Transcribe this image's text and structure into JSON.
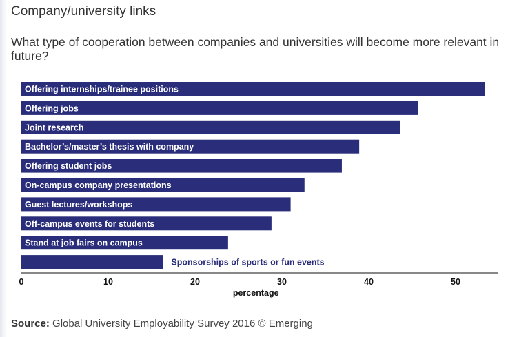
{
  "page": {
    "title": "Company/university links"
  },
  "source": {
    "label": "Source:",
    "text": " Global University Employability Survey 2016 © Emerging"
  },
  "chart_data": {
    "type": "bar",
    "orientation": "horizontal",
    "title": "What type of cooperation between companies and universities will become more relevant in future?",
    "xlabel": "percentage",
    "ylabel": "",
    "xlim": [
      0,
      54
    ],
    "xticks": [
      0,
      10,
      20,
      30,
      40,
      50
    ],
    "grid": false,
    "categories": [
      "Offering internships/trainee positions",
      "Offering jobs",
      "Joint research",
      "Bachelor’s/master’s thesis with company",
      "Offering student jobs",
      "On-campus company presentations",
      "Guest lectures/workshops",
      "Off-campus events for students",
      "Stand at job fairs on campus",
      "Sponsorships of sports or fun events"
    ],
    "values": [
      53.4,
      45.7,
      43.6,
      38.9,
      36.9,
      32.6,
      31.0,
      28.8,
      23.8,
      16.3
    ],
    "colors": {
      "bar": "#2a2d7a",
      "label_inside": "#ffffff",
      "label_outside": "#2a2d7a",
      "axis": "#111111"
    }
  }
}
